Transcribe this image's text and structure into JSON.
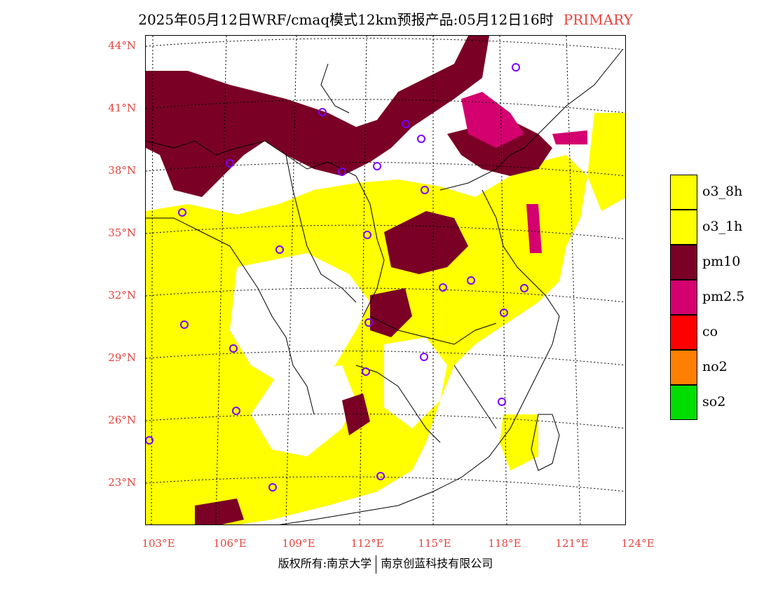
{
  "title": {
    "main": "2025年05月12日WRF/cmaq模式12km预报产品:05月12日16时",
    "tag": "PRIMARY"
  },
  "axes": {
    "lat_labels": [
      "44°N",
      "41°N",
      "38°N",
      "35°N",
      "32°N",
      "29°N",
      "26°N",
      "23°N"
    ],
    "lon_labels": [
      "103°E",
      "106°E",
      "109°E",
      "112°E",
      "115°E",
      "118°E",
      "121°E",
      "124°E"
    ]
  },
  "legend": [
    {
      "label": "o3_8h",
      "color": "#ffff00"
    },
    {
      "label": "o3_1h",
      "color": "#ffff00"
    },
    {
      "label": "pm10",
      "color": "#7a0026"
    },
    {
      "label": "pm2.5",
      "color": "#d4006f"
    },
    {
      "label": "co",
      "color": "#ff0000"
    },
    {
      "label": "no2",
      "color": "#ff8000"
    },
    {
      "label": "so2",
      "color": "#00dd00"
    }
  ],
  "copyright": {
    "left": "版权所有:南京大学",
    "right": "南京创蓝科技有限公司"
  },
  "colors": {
    "label_red": "#e8413c",
    "o3": "#ffff00",
    "pm10": "#7a0026",
    "pm25": "#d4006f",
    "station_marker": "#7a00ff"
  }
}
